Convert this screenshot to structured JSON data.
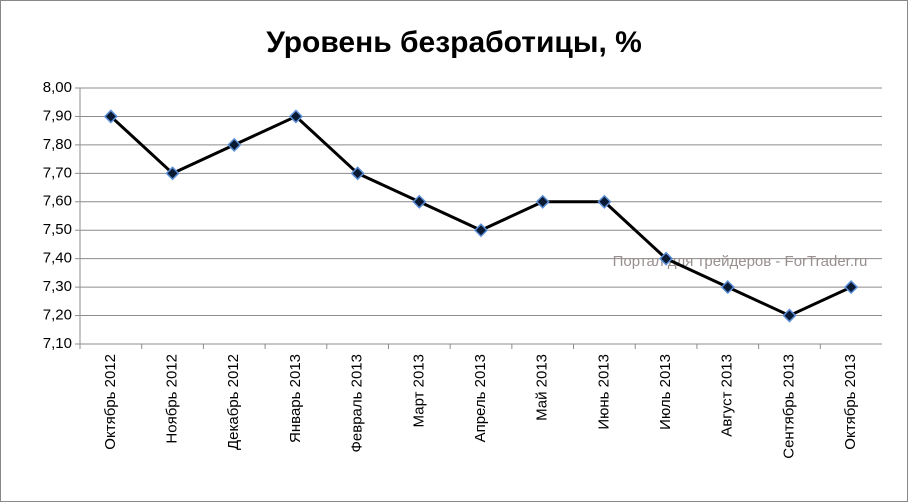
{
  "chart_data": {
    "type": "line",
    "title": "Уровень безработицы, %",
    "categories": [
      "Октябрь 2012",
      "Ноябрь 2012",
      "Декабрь 2012",
      "Январь 2013",
      "Февраль 2013",
      "Март 2013",
      "Апрель 2013",
      "Май 2013",
      "Июнь 2013",
      "Июль 2013",
      "Август 2013",
      "Сентябрь 2013",
      "Октябрь 2013"
    ],
    "values": [
      7.9,
      7.7,
      7.8,
      7.9,
      7.7,
      7.6,
      7.5,
      7.6,
      7.6,
      7.4,
      7.3,
      7.2,
      7.3
    ],
    "color": "#000000",
    "marker_color": "#0a1a33",
    "marker_edge": "#5b8ed6",
    "ylim": [
      7.1,
      8.0
    ],
    "yticks": [
      {
        "value": 7.1,
        "label": "7,10"
      },
      {
        "value": 7.2,
        "label": "7,20"
      },
      {
        "value": 7.3,
        "label": "7,30"
      },
      {
        "value": 7.4,
        "label": "7,40"
      },
      {
        "value": 7.5,
        "label": "7,50"
      },
      {
        "value": 7.6,
        "label": "7,60"
      },
      {
        "value": 7.7,
        "label": "7,70"
      },
      {
        "value": 7.8,
        "label": "7,80"
      },
      {
        "value": 7.9,
        "label": "7,90"
      },
      {
        "value": 8.0,
        "label": "8,00"
      }
    ],
    "grid": true,
    "watermark": "Портал для трейдеров - ForTrader.ru"
  }
}
